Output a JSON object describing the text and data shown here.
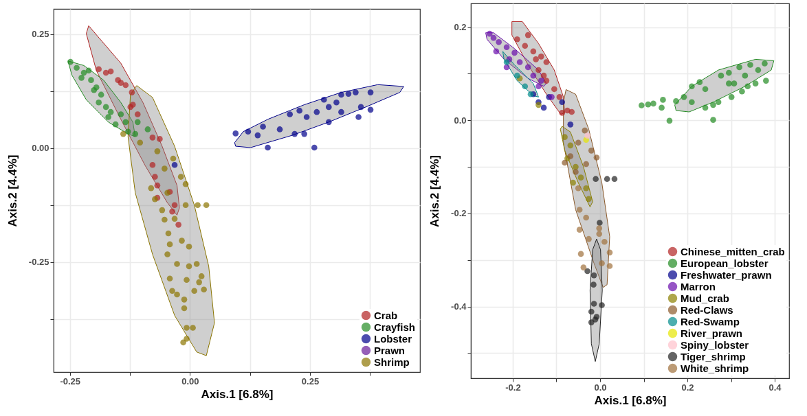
{
  "chart_data": [
    {
      "type": "scatter",
      "xlabel": "Axis.1   [6.8%]",
      "ylabel": "Axis.2   [4.4%]",
      "xlim": [
        -0.284,
        0.479
      ],
      "ylim": [
        -0.491,
        0.305
      ],
      "xticks": [
        -0.25,
        {
          "value": -0.125,
          "label": null
        },
        {
          "value": 0,
          "label": "0.00"
        },
        {
          "value": 0.125,
          "label": null
        },
        0.25,
        {
          "value": 0.375,
          "label": null
        }
      ],
      "yticks": [
        {
          "value": -0.375,
          "label": null
        },
        -0.25,
        {
          "value": -0.125,
          "label": null
        },
        {
          "value": 0,
          "label": "0.00"
        },
        {
          "value": 0.125,
          "label": null
        },
        0.25
      ],
      "grid": true,
      "legend": "bottom right",
      "marker": "circle",
      "series": [
        {
          "type": "area",
          "marker": "none",
          "color": "#b22222",
          "x": [
            -0.211,
            -0.144,
            -0.098,
            -0.058,
            -0.027,
            -0.022,
            -0.027,
            -0.047,
            -0.093,
            -0.144,
            -0.195,
            -0.216
          ],
          "values": [
            0.268,
            0.186,
            0.1,
            0.004,
            -0.082,
            -0.131,
            -0.147,
            -0.12,
            -0.039,
            0.063,
            0.17,
            0.251
          ]
        },
        {
          "type": "area",
          "marker": "none",
          "color": "#228b22",
          "x": [
            -0.254,
            -0.221,
            -0.18,
            -0.144,
            -0.119,
            -0.114,
            -0.129,
            -0.17,
            -0.216,
            -0.246
          ],
          "values": [
            0.191,
            0.181,
            0.149,
            0.1,
            0.057,
            0.025,
            0.031,
            0.057,
            0.106,
            0.16
          ]
        },
        {
          "type": "area",
          "marker": "none",
          "color": "#00008b",
          "x": [
            0.093,
            0.111,
            0.162,
            0.238,
            0.315,
            0.391,
            0.445,
            0.437,
            0.366,
            0.289,
            0.213,
            0.126,
            0.095
          ],
          "values": [
            0.012,
            0.036,
            0.063,
            0.095,
            0.122,
            0.139,
            0.135,
            0.122,
            0.09,
            0.057,
            0.028,
            0.001,
            0.004
          ]
        },
        {
          "type": "area",
          "marker": "none",
          "color": "#8b7500",
          "x": [
            -0.111,
            -0.078,
            -0.032,
            0.009,
            0.039,
            0.051,
            0.034,
            0.014,
            -0.032,
            -0.078,
            -0.114,
            -0.129,
            -0.124
          ],
          "values": [
            0.137,
            0.111,
            0.004,
            -0.125,
            -0.259,
            -0.383,
            -0.455,
            -0.447,
            -0.367,
            -0.233,
            -0.098,
            0.025,
            0.117
          ]
        },
        {
          "name": "Crab",
          "color": "#b22222",
          "x": [
            -0.19,
            -0.165,
            -0.15,
            -0.134,
            -0.121,
            -0.124,
            -0.109,
            -0.078,
            -0.063,
            -0.078,
            -0.073,
            -0.068,
            -0.042,
            -0.068,
            -0.032,
            -0.037,
            -0.024,
            -0.144,
            -0.119,
            -0.175
          ],
          "values": [
            0.173,
            0.168,
            0.149,
            0.138,
            0.122,
            0.09,
            0.074,
            0.023,
            0.02,
            -0.037,
            -0.063,
            -0.082,
            -0.096,
            -0.109,
            -0.125,
            -0.139,
            -0.168,
            0.143,
            0.095,
            0.165
          ]
        },
        {
          "name": "Crayfish",
          "color": "#228b22",
          "x": [
            -0.249,
            -0.236,
            -0.221,
            -0.206,
            -0.195,
            -0.185,
            -0.175,
            -0.17,
            -0.155,
            -0.129,
            -0.114,
            -0.088,
            -0.109,
            -0.144,
            -0.226,
            -0.211,
            -0.19,
            -0.165,
            -0.134,
            -0.2
          ],
          "values": [
            0.189,
            0.176,
            0.165,
            0.149,
            0.133,
            0.117,
            0.09,
            0.068,
            0.052,
            0.036,
            0.031,
            0.041,
            0.057,
            0.074,
            0.154,
            0.17,
            0.1,
            0.079,
            0.057,
            0.127
          ]
        },
        {
          "name": "Lobster",
          "color": "#00008b",
          "x": [
            0.095,
            0.121,
            0.141,
            0.162,
            0.187,
            0.208,
            0.228,
            0.243,
            0.259,
            0.264,
            0.279,
            0.289,
            0.305,
            0.315,
            0.33,
            0.345,
            0.356,
            0.376,
            0.376,
            0.351,
            0.238,
            0.218,
            0.152,
            0.289,
            0.315,
            -0.032
          ],
          "values": [
            0.032,
            0.036,
            0.028,
            0.001,
            0.041,
            0.074,
            0.082,
            0.068,
            0.001,
            0.079,
            0.106,
            0.09,
            0.1,
            0.117,
            0.119,
            0.122,
            0.09,
            0.122,
            0.084,
            0.068,
            0.031,
            0.031,
            0.047,
            0.057,
            0.079,
            -0.037
          ]
        },
        {
          "name": "Prawn",
          "color": "#6a1b9a"
        },
        {
          "name": "Shrimp",
          "color": "#8b7500",
          "x": [
            -0.139,
            -0.104,
            -0.068,
            -0.035,
            -0.053,
            -0.019,
            -0.009,
            -0.081,
            -0.047,
            -0.073,
            -0.058,
            -0.053,
            -0.032,
            -0.009,
            0.016,
            0.034,
            -0.045,
            -0.042,
            -0.017,
            -0.002,
            -0.047,
            -0.027,
            -0.002,
            0.014,
            -0.042,
            -0.007,
            0.019,
            0.024,
            -0.037,
            -0.027,
            -0.012,
            0.009,
            0.029,
            -0.012,
            -0.007,
            0.006,
            -0.014,
            -0.007
          ],
          "values": [
            0.031,
            0.012,
            -0.007,
            -0.023,
            -0.045,
            -0.063,
            -0.079,
            -0.088,
            -0.098,
            -0.112,
            -0.136,
            -0.157,
            -0.155,
            -0.125,
            -0.125,
            -0.125,
            -0.187,
            -0.211,
            -0.203,
            -0.216,
            -0.233,
            -0.254,
            -0.259,
            -0.254,
            -0.286,
            -0.289,
            -0.294,
            -0.281,
            -0.313,
            -0.321,
            -0.332,
            -0.313,
            -0.31,
            -0.351,
            -0.394,
            -0.394,
            -0.426,
            -0.418
          ]
        }
      ]
    },
    {
      "type": "scatter",
      "xlabel": "Axis.1   [6.8%]",
      "ylabel": "Axis.2   [4.4%]",
      "xlim": [
        -0.296,
        0.433
      ],
      "ylim": [
        -0.554,
        0.251
      ],
      "xticks": [
        -0.2,
        {
          "value": -0.1,
          "label": null
        },
        {
          "value": 0,
          "label": "0.0"
        },
        {
          "value": 0.1,
          "label": null
        },
        0.2,
        {
          "value": 0.3,
          "label": null
        },
        0.4
      ],
      "yticks": [
        {
          "value": -0.5,
          "label": null
        },
        -0.4,
        {
          "value": -0.3,
          "label": null
        },
        -0.2,
        {
          "value": -0.1,
          "label": null
        },
        {
          "value": 0,
          "label": "0.0"
        },
        {
          "value": 0.1,
          "label": null
        },
        0.2
      ],
      "grid": true,
      "legend": "bottom right",
      "marker": "circle",
      "series": [
        {
          "type": "area",
          "marker": "none",
          "color": "#b22222",
          "x": [
            -0.202,
            -0.178,
            -0.141,
            -0.105,
            -0.084,
            -0.081,
            -0.09,
            -0.123,
            -0.165,
            -0.202
          ],
          "values": [
            0.212,
            0.212,
            0.165,
            0.108,
            0.05,
            0.016,
            0.013,
            0.056,
            0.119,
            0.183
          ]
        },
        {
          "type": "area",
          "marker": "none",
          "color": "#228b22",
          "x": [
            0.171,
            0.21,
            0.271,
            0.356,
            0.398,
            0.392,
            0.332,
            0.259,
            0.204,
            0.174
          ],
          "values": [
            0.033,
            0.073,
            0.108,
            0.131,
            0.128,
            0.108,
            0.073,
            0.039,
            0.018,
            0.021
          ]
        },
        {
          "type": "area",
          "marker": "none",
          "color": "#8b5a2b",
          "x": [
            -0.078,
            -0.056,
            -0.026,
            0.004,
            0.022,
            0.016,
            0.007,
            -0.014,
            -0.056,
            -0.084,
            -0.084
          ],
          "values": [
            0.066,
            0.056,
            -0.019,
            -0.134,
            -0.25,
            -0.353,
            -0.359,
            -0.307,
            -0.192,
            -0.048,
            0.039
          ]
        },
        {
          "type": "area",
          "marker": "none",
          "color": "#8b8000",
          "x": [
            -0.087,
            -0.068,
            -0.038,
            -0.017,
            -0.023,
            -0.05,
            -0.081,
            -0.091
          ],
          "values": [
            -0.013,
            -0.025,
            -0.1,
            -0.175,
            -0.186,
            -0.134,
            -0.065,
            -0.019
          ]
        },
        {
          "type": "area",
          "marker": "none",
          "color": "#222222",
          "x": [
            -0.008,
            0.001,
            0.005,
            -0.002,
            -0.011,
            -0.02,
            -0.023,
            -0.017
          ],
          "values": [
            -0.255,
            -0.278,
            -0.365,
            -0.48,
            -0.518,
            -0.48,
            -0.365,
            -0.278
          ]
        },
        {
          "type": "area",
          "marker": "none",
          "color": "#6a0dad",
          "x": [
            -0.262,
            -0.244,
            -0.196,
            -0.141,
            -0.123,
            -0.129,
            -0.165,
            -0.22,
            -0.259
          ],
          "values": [
            0.188,
            0.188,
            0.154,
            0.108,
            0.079,
            0.073,
            0.09,
            0.131,
            0.174
          ]
        },
        {
          "type": "area",
          "marker": "none",
          "color": "#008b8b",
          "x": [
            -0.223,
            -0.196,
            -0.153,
            -0.141,
            -0.153,
            -0.19,
            -0.22
          ],
          "values": [
            0.148,
            0.119,
            0.079,
            0.05,
            0.053,
            0.085,
            0.131
          ]
        },
        {
          "name": "Chinese_mitten_crab",
          "color": "#b22222",
          "x": [
            -0.19,
            -0.172,
            -0.153,
            -0.135,
            -0.123,
            -0.141,
            -0.123,
            -0.105,
            -0.093,
            -0.075,
            -0.065,
            -0.087,
            -0.165,
            -0.147,
            -0.129
          ],
          "values": [
            0.174,
            0.16,
            0.148,
            0.137,
            0.125,
            0.108,
            0.085,
            0.067,
            0.05,
            0.021,
            0.018,
            0.016,
            0.183,
            0.131,
            0.096
          ]
        },
        {
          "name": "European_lobster",
          "color": "#228b22",
          "x": [
            0.095,
            0.11,
            0.122,
            0.141,
            0.144,
            0.159,
            0.174,
            0.192,
            0.21,
            0.228,
            0.241,
            0.259,
            0.259,
            0.277,
            0.295,
            0.307,
            0.319,
            0.332,
            0.344,
            0.362,
            0.377,
            0.38,
            0.356,
            0.325,
            0.301,
            0.271,
            0.241,
            0.21,
            0.338,
            0.295
          ],
          "values": [
            0.032,
            0.034,
            0.036,
            0.027,
            0.044,
            -0.001,
            0.041,
            0.05,
            0.073,
            0.082,
            0.067,
            0.001,
            0.033,
            0.096,
            0.102,
            0.079,
            0.114,
            0.096,
            0.119,
            0.108,
            0.122,
            0.085,
            0.079,
            0.062,
            0.05,
            0.039,
            0.027,
            0.039,
            0.073,
            0.079
          ]
        },
        {
          "name": "Freshwater_prawn",
          "color": "#00008b",
          "x": [
            -0.141,
            -0.129,
            -0.087,
            -0.068,
            -0.117,
            -0.153
          ],
          "values": [
            0.039,
            0.027,
            0.039,
            -0.009,
            0.05,
            0.056
          ]
        },
        {
          "name": "Marron",
          "color": "#6a0dad",
          "x": [
            -0.253,
            -0.244,
            -0.232,
            -0.214,
            -0.238,
            -0.208,
            -0.196,
            -0.184,
            -0.165,
            -0.153,
            -0.135,
            -0.214,
            -0.111,
            -0.141
          ],
          "values": [
            0.186,
            0.177,
            0.168,
            0.157,
            0.148,
            0.131,
            0.145,
            0.125,
            0.114,
            0.096,
            0.085,
            0.114,
            0.05,
            0.073
          ]
        },
        {
          "name": "Mud_crab",
          "color": "#8b8000",
          "x": [
            -0.081,
            -0.068,
            -0.075,
            -0.056,
            -0.044,
            -0.032,
            -0.026,
            -0.062,
            -0.184,
            -0.141
          ],
          "values": [
            -0.036,
            -0.054,
            -0.082,
            -0.1,
            -0.123,
            -0.146,
            -0.169,
            -0.134,
            0.09,
            0.033
          ]
        },
        {
          "name": "Red-Claws",
          "color": "#8b5a2b",
          "x": [
            -0.035,
            -0.05,
            -0.02,
            -0.008,
            -0.068,
            -0.056,
            -0.032,
            -0.081
          ],
          "values": [
            -0.022,
            -0.048,
            -0.065,
            -0.08,
            -0.077,
            -0.111,
            -0.094,
            -0.091
          ]
        },
        {
          "name": "Red-Swamp",
          "color": "#008b8b",
          "x": [
            -0.214,
            -0.19,
            -0.172,
            -0.159
          ],
          "values": [
            0.125,
            0.096,
            0.073,
            0.056
          ]
        },
        {
          "name": "River_prawn",
          "color": "#e5e500",
          "x": [
            -0.032
          ],
          "values": [
            -0.042
          ]
        },
        {
          "name": "Spiny_lobster",
          "color": "#ffc0cb",
          "x": [
            -0.029
          ],
          "values": [
            -0.033
          ]
        },
        {
          "name": "Tiger_shrimp",
          "color": "#222222",
          "x": [
            -0.01,
            0.016,
            0.033,
            -0.001,
            -0.029,
            -0.014,
            -0.015,
            -0.014,
            0.004,
            -0.02,
            -0.008,
            -0.02,
            -0.011
          ],
          "values": [
            -0.126,
            -0.126,
            -0.126,
            -0.22,
            -0.324,
            -0.333,
            -0.353,
            -0.394,
            -0.397,
            -0.411,
            -0.422,
            -0.434,
            -0.428
          ]
        },
        {
          "name": "White_shrimp",
          "color": "#a0703c",
          "x": [
            -0.047,
            -0.032,
            -0.047,
            -0.026,
            -0.002,
            0.01,
            0.022,
            -0.044,
            -0.038,
            0.022,
            0.004,
            -0.002,
            -0.05
          ],
          "values": [
            -0.192,
            -0.209,
            -0.235,
            -0.255,
            -0.244,
            -0.261,
            -0.284,
            -0.287,
            -0.316,
            -0.313,
            -0.307,
            -0.232,
            -0.146
          ]
        }
      ]
    }
  ]
}
